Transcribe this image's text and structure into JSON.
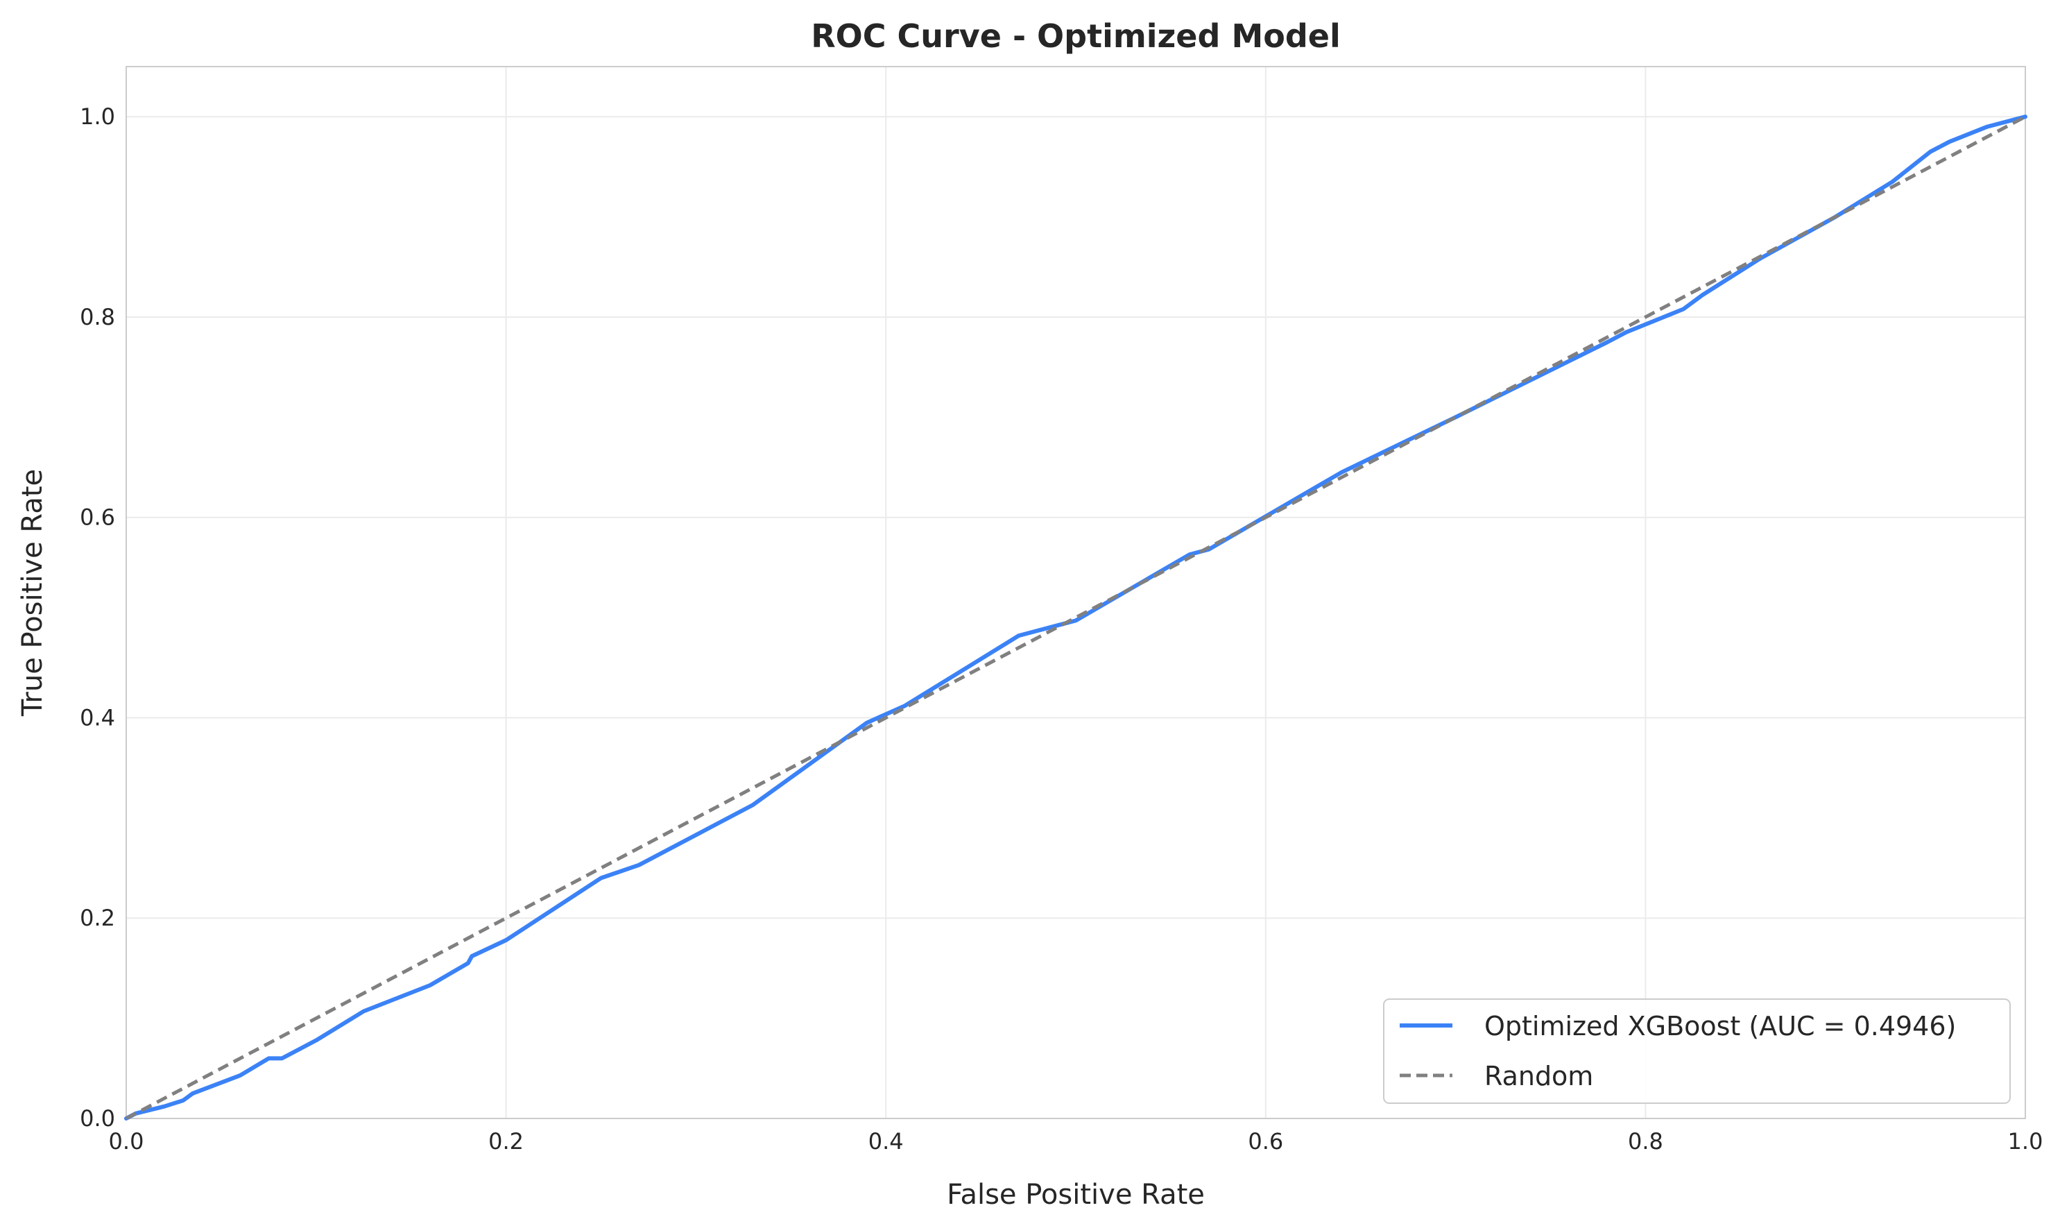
{
  "chart_data": {
    "type": "line",
    "title": "ROC Curve - Optimized Model",
    "xlabel": "False Positive Rate",
    "ylabel": "True Positive Rate",
    "xlim": [
      0.0,
      1.0
    ],
    "ylim": [
      0.0,
      1.05
    ],
    "x_ticks": [
      "0.0",
      "0.2",
      "0.4",
      "0.6",
      "0.8",
      "1.0"
    ],
    "y_ticks": [
      "0.0",
      "0.2",
      "0.4",
      "0.6",
      "0.8",
      "1.0"
    ],
    "grid": true,
    "legend_position": "lower-right",
    "series": [
      {
        "name": "Optimized XGBoost (AUC = 0.4946)",
        "color": "#3b82f6",
        "style": "solid",
        "x": [
          0.0,
          0.005,
          0.02,
          0.03,
          0.035,
          0.06,
          0.075,
          0.082,
          0.1,
          0.125,
          0.16,
          0.18,
          0.182,
          0.2,
          0.25,
          0.27,
          0.33,
          0.39,
          0.41,
          0.47,
          0.5,
          0.56,
          0.57,
          0.64,
          0.7,
          0.78,
          0.79,
          0.82,
          0.83,
          0.86,
          0.9,
          0.93,
          0.95,
          0.96,
          0.98,
          1.0
        ],
        "y": [
          0.0,
          0.005,
          0.012,
          0.018,
          0.025,
          0.043,
          0.06,
          0.06,
          0.078,
          0.107,
          0.133,
          0.155,
          0.162,
          0.178,
          0.24,
          0.253,
          0.313,
          0.395,
          0.412,
          0.482,
          0.497,
          0.563,
          0.568,
          0.645,
          0.7,
          0.775,
          0.785,
          0.808,
          0.822,
          0.858,
          0.9,
          0.935,
          0.965,
          0.975,
          0.99,
          1.0
        ]
      },
      {
        "name": "Random",
        "color": "#808080",
        "style": "dashed",
        "x": [
          0.0,
          1.0
        ],
        "y": [
          0.0,
          1.0
        ]
      }
    ]
  }
}
